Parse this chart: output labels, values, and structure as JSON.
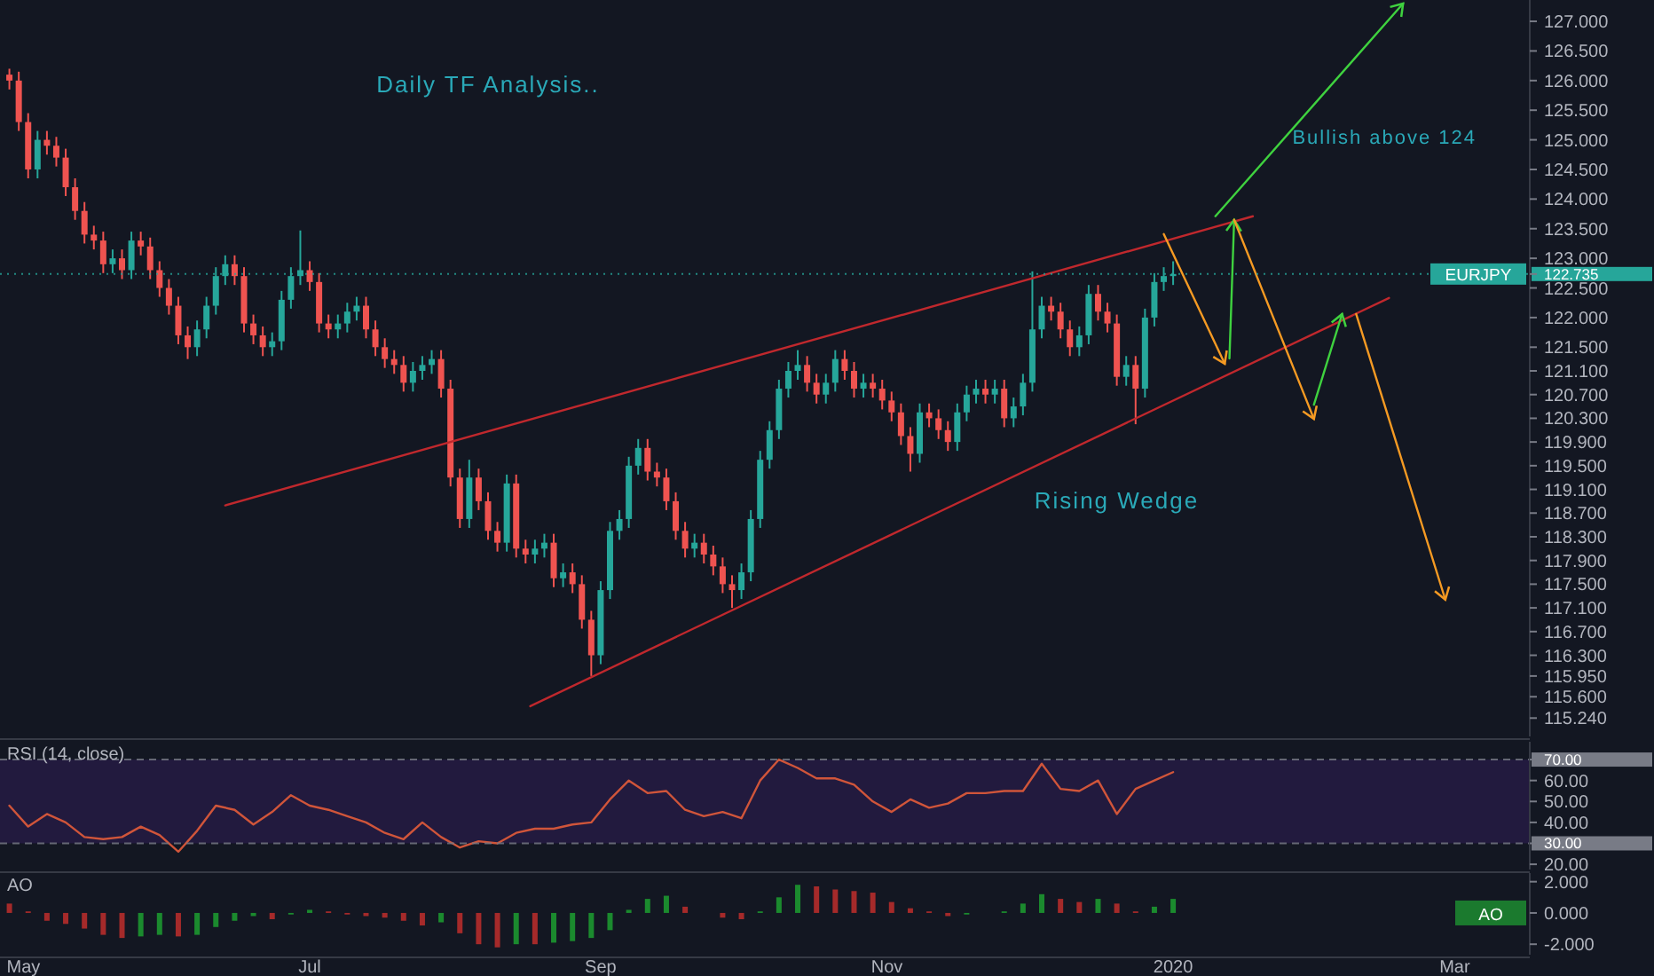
{
  "chart_data": [
    {
      "type": "candlestick",
      "annotations": [
        "Daily TF Analysis..",
        "Bullish above 124",
        "Rising Wedge"
      ],
      "x": [
        "2019-04-28",
        "2019-04-30",
        "2019-05-02",
        "2019-05-04",
        "2019-05-06",
        "2019-05-08",
        "2019-05-10",
        "2019-05-12",
        "2019-05-14",
        "2019-05-16",
        "2019-05-18",
        "2019-05-20",
        "2019-05-22",
        "2019-05-24",
        "2019-05-26",
        "2019-05-28",
        "2019-05-30",
        "2019-06-01",
        "2019-06-03",
        "2019-06-05",
        "2019-06-07",
        "2019-06-09",
        "2019-06-11",
        "2019-06-13",
        "2019-06-15",
        "2019-06-17",
        "2019-06-19",
        "2019-06-21",
        "2019-06-23",
        "2019-06-25",
        "2019-06-27",
        "2019-06-29",
        "2019-07-01",
        "2019-07-03",
        "2019-07-05",
        "2019-07-07",
        "2019-07-09",
        "2019-07-11",
        "2019-07-13",
        "2019-07-15",
        "2019-07-17",
        "2019-07-19",
        "2019-07-21",
        "2019-07-23",
        "2019-07-25",
        "2019-07-27",
        "2019-07-29",
        "2019-07-31",
        "2019-08-02",
        "2019-08-04",
        "2019-08-06",
        "2019-08-08",
        "2019-08-10",
        "2019-08-12",
        "2019-08-14",
        "2019-08-16",
        "2019-08-18",
        "2019-08-20",
        "2019-08-22",
        "2019-08-24",
        "2019-08-26",
        "2019-08-28",
        "2019-08-30",
        "2019-09-01",
        "2019-09-03",
        "2019-09-05",
        "2019-09-07",
        "2019-09-09",
        "2019-09-11",
        "2019-09-13",
        "2019-09-15",
        "2019-09-17",
        "2019-09-19",
        "2019-09-21",
        "2019-09-23",
        "2019-09-25",
        "2019-09-27",
        "2019-09-29",
        "2019-10-01",
        "2019-10-03",
        "2019-10-05",
        "2019-10-07",
        "2019-10-09",
        "2019-10-11",
        "2019-10-13",
        "2019-10-15",
        "2019-10-17",
        "2019-10-19",
        "2019-10-21",
        "2019-10-23",
        "2019-10-25",
        "2019-10-27",
        "2019-10-29",
        "2019-10-31",
        "2019-11-02",
        "2019-11-04",
        "2019-11-06",
        "2019-11-08",
        "2019-11-10",
        "2019-11-12",
        "2019-11-14",
        "2019-11-16",
        "2019-11-18",
        "2019-11-20",
        "2019-11-22",
        "2019-11-24",
        "2019-11-26",
        "2019-11-28",
        "2019-11-30",
        "2019-12-02",
        "2019-12-04",
        "2019-12-06",
        "2019-12-08",
        "2019-12-10",
        "2019-12-12",
        "2019-12-14",
        "2019-12-16",
        "2019-12-18",
        "2019-12-20",
        "2019-12-22",
        "2019-12-24",
        "2019-12-26",
        "2019-12-28",
        "2019-12-30",
        "2020-01-01"
      ],
      "ohlc": [
        [
          126.1,
          126.2,
          125.85,
          126.0
        ],
        [
          126.0,
          126.15,
          125.15,
          125.3
        ],
        [
          125.3,
          125.45,
          124.35,
          124.5
        ],
        [
          124.5,
          125.15,
          124.35,
          125.0
        ],
        [
          125.0,
          125.15,
          124.75,
          124.9
        ],
        [
          124.9,
          125.05,
          124.55,
          124.7
        ],
        [
          124.7,
          124.85,
          124.05,
          124.2
        ],
        [
          124.2,
          124.35,
          123.65,
          123.8
        ],
        [
          123.8,
          123.95,
          123.25,
          123.4
        ],
        [
          123.4,
          123.55,
          123.15,
          123.3
        ],
        [
          123.3,
          123.45,
          122.75,
          122.9
        ],
        [
          122.9,
          123.15,
          122.75,
          123.0
        ],
        [
          123.0,
          123.15,
          122.65,
          122.8
        ],
        [
          122.8,
          123.45,
          122.65,
          123.3
        ],
        [
          123.3,
          123.45,
          123.05,
          123.2
        ],
        [
          123.2,
          123.35,
          122.65,
          122.8
        ],
        [
          122.8,
          122.95,
          122.35,
          122.5
        ],
        [
          122.5,
          122.65,
          122.05,
          122.2
        ],
        [
          122.2,
          122.35,
          121.55,
          121.7
        ],
        [
          121.7,
          121.85,
          121.3,
          121.5
        ],
        [
          121.5,
          121.95,
          121.35,
          121.8
        ],
        [
          121.8,
          122.35,
          121.65,
          122.2
        ],
        [
          122.2,
          122.85,
          122.05,
          122.7
        ],
        [
          122.7,
          123.05,
          122.55,
          122.9
        ],
        [
          122.9,
          123.05,
          122.55,
          122.7
        ],
        [
          122.7,
          122.85,
          121.75,
          121.9
        ],
        [
          121.9,
          122.05,
          121.55,
          121.7
        ],
        [
          121.7,
          121.85,
          121.35,
          121.5
        ],
        [
          121.5,
          121.75,
          121.35,
          121.6
        ],
        [
          121.6,
          122.45,
          121.45,
          122.3
        ],
        [
          122.3,
          122.85,
          122.15,
          122.7
        ],
        [
          122.7,
          123.47,
          122.55,
          122.8
        ],
        [
          122.8,
          122.95,
          122.45,
          122.6
        ],
        [
          122.6,
          122.75,
          121.75,
          121.9
        ],
        [
          121.9,
          122.05,
          121.65,
          121.8
        ],
        [
          121.8,
          122.05,
          121.65,
          121.9
        ],
        [
          121.9,
          122.25,
          121.75,
          122.1
        ],
        [
          122.1,
          122.35,
          121.95,
          122.2
        ],
        [
          122.2,
          122.35,
          121.65,
          121.8
        ],
        [
          121.8,
          121.95,
          121.35,
          121.5
        ],
        [
          121.5,
          121.65,
          121.15,
          121.3
        ],
        [
          121.3,
          121.45,
          121.05,
          121.2
        ],
        [
          121.2,
          121.35,
          120.75,
          120.9
        ],
        [
          120.9,
          121.25,
          120.75,
          121.1
        ],
        [
          121.1,
          121.35,
          120.95,
          121.2
        ],
        [
          121.2,
          121.45,
          121.05,
          121.3
        ],
        [
          121.3,
          121.45,
          120.65,
          120.8
        ],
        [
          120.8,
          120.95,
          119.15,
          119.3
        ],
        [
          119.3,
          119.45,
          118.45,
          118.6
        ],
        [
          118.6,
          119.6,
          118.45,
          119.3
        ],
        [
          119.3,
          119.45,
          118.75,
          118.9
        ],
        [
          118.9,
          119.05,
          118.25,
          118.4
        ],
        [
          118.4,
          118.55,
          118.05,
          118.2
        ],
        [
          118.2,
          119.35,
          118.05,
          119.2
        ],
        [
          119.2,
          119.35,
          117.95,
          118.1
        ],
        [
          118.1,
          118.25,
          117.85,
          118.0
        ],
        [
          118.0,
          118.25,
          117.85,
          118.1
        ],
        [
          118.1,
          118.35,
          117.95,
          118.2
        ],
        [
          118.2,
          118.35,
          117.45,
          117.6
        ],
        [
          117.6,
          117.85,
          117.45,
          117.7
        ],
        [
          117.7,
          117.85,
          117.35,
          117.5
        ],
        [
          117.5,
          117.65,
          116.75,
          116.9
        ],
        [
          116.9,
          117.05,
          115.95,
          116.3
        ],
        [
          116.3,
          117.55,
          116.15,
          117.4
        ],
        [
          117.4,
          118.55,
          117.25,
          118.4
        ],
        [
          118.4,
          118.75,
          118.25,
          118.6
        ],
        [
          118.6,
          119.65,
          118.45,
          119.5
        ],
        [
          119.5,
          119.95,
          119.35,
          119.8
        ],
        [
          119.8,
          119.95,
          119.25,
          119.4
        ],
        [
          119.4,
          119.55,
          119.15,
          119.3
        ],
        [
          119.3,
          119.45,
          118.75,
          118.9
        ],
        [
          118.9,
          119.05,
          118.25,
          118.4
        ],
        [
          118.4,
          118.55,
          117.95,
          118.1
        ],
        [
          118.1,
          118.35,
          117.95,
          118.2
        ],
        [
          118.2,
          118.35,
          117.85,
          118.0
        ],
        [
          118.0,
          118.15,
          117.65,
          117.8
        ],
        [
          117.8,
          117.95,
          117.35,
          117.5
        ],
        [
          117.5,
          117.65,
          117.1,
          117.4
        ],
        [
          117.4,
          117.85,
          117.25,
          117.7
        ],
        [
          117.7,
          118.75,
          117.55,
          118.6
        ],
        [
          118.6,
          119.75,
          118.45,
          119.6
        ],
        [
          119.6,
          120.25,
          119.45,
          120.1
        ],
        [
          120.1,
          120.95,
          119.95,
          120.8
        ],
        [
          120.8,
          121.25,
          120.65,
          121.1
        ],
        [
          121.1,
          121.45,
          120.95,
          121.2
        ],
        [
          121.2,
          121.35,
          120.75,
          120.9
        ],
        [
          120.9,
          121.05,
          120.55,
          120.7
        ],
        [
          120.7,
          121.05,
          120.55,
          120.9
        ],
        [
          120.9,
          121.45,
          120.75,
          121.3
        ],
        [
          121.3,
          121.45,
          120.95,
          121.1
        ],
        [
          121.1,
          121.25,
          120.65,
          120.8
        ],
        [
          120.8,
          121.05,
          120.65,
          120.9
        ],
        [
          120.9,
          121.05,
          120.65,
          120.8
        ],
        [
          120.8,
          120.95,
          120.45,
          120.6
        ],
        [
          120.6,
          120.75,
          120.25,
          120.4
        ],
        [
          120.4,
          120.55,
          119.85,
          120.0
        ],
        [
          120.0,
          120.15,
          119.4,
          119.7
        ],
        [
          119.7,
          120.55,
          119.55,
          120.4
        ],
        [
          120.4,
          120.55,
          120.15,
          120.3
        ],
        [
          120.3,
          120.45,
          119.95,
          120.1
        ],
        [
          120.1,
          120.25,
          119.75,
          119.9
        ],
        [
          119.9,
          120.55,
          119.75,
          120.4
        ],
        [
          120.4,
          120.85,
          120.25,
          120.7
        ],
        [
          120.7,
          120.95,
          120.55,
          120.8
        ],
        [
          120.8,
          120.95,
          120.55,
          120.7
        ],
        [
          120.7,
          120.95,
          120.55,
          120.8
        ],
        [
          120.8,
          120.95,
          120.15,
          120.3
        ],
        [
          120.3,
          120.65,
          120.15,
          120.5
        ],
        [
          120.5,
          121.05,
          120.35,
          120.9
        ],
        [
          120.9,
          122.78,
          120.75,
          121.8
        ],
        [
          121.8,
          122.35,
          121.65,
          122.2
        ],
        [
          122.2,
          122.35,
          121.95,
          122.1
        ],
        [
          122.1,
          122.25,
          121.65,
          121.8
        ],
        [
          121.8,
          121.95,
          121.35,
          121.5
        ],
        [
          121.5,
          121.85,
          121.35,
          121.7
        ],
        [
          121.7,
          122.55,
          121.55,
          122.4
        ],
        [
          122.4,
          122.55,
          121.95,
          122.1
        ],
        [
          122.1,
          122.25,
          121.75,
          121.9
        ],
        [
          121.9,
          122.05,
          120.85,
          121.0
        ],
        [
          121.0,
          121.35,
          120.85,
          121.2
        ],
        [
          121.2,
          121.35,
          120.2,
          120.8
        ],
        [
          120.8,
          122.15,
          120.65,
          122.0
        ],
        [
          122.0,
          122.75,
          121.85,
          122.6
        ],
        [
          122.6,
          122.85,
          122.45,
          122.7
        ],
        [
          122.7,
          122.95,
          122.55,
          122.735
        ]
      ],
      "colors": [
        "#ef5350",
        "#ef5350",
        "#ef5350",
        "#26a69a",
        "#ef5350",
        "#ef5350",
        "#ef5350",
        "#ef5350",
        "#ef5350",
        "#ef5350",
        "#ef5350",
        "#26a69a",
        "#ef5350",
        "#26a69a",
        "#ef5350",
        "#ef5350",
        "#ef5350",
        "#ef5350",
        "#ef5350",
        "#ef5350",
        "#26a69a",
        "#26a69a",
        "#26a69a",
        "#26a69a",
        "#ef5350",
        "#ef5350",
        "#ef5350",
        "#ef5350",
        "#26a69a",
        "#26a69a",
        "#26a69a",
        "#26a69a",
        "#ef5350",
        "#ef5350",
        "#ef5350",
        "#26a69a",
        "#26a69a",
        "#26a69a",
        "#ef5350",
        "#ef5350",
        "#ef5350",
        "#ef5350",
        "#ef5350",
        "#26a69a",
        "#26a69a",
        "#26a69a",
        "#ef5350",
        "#ef5350",
        "#ef5350",
        "#26a69a",
        "#ef5350",
        "#ef5350",
        "#ef5350",
        "#26a69a",
        "#ef5350",
        "#ef5350",
        "#26a69a",
        "#26a69a",
        "#ef5350",
        "#26a69a",
        "#ef5350",
        "#ef5350",
        "#ef5350",
        "#26a69a",
        "#26a69a",
        "#26a69a",
        "#26a69a",
        "#26a69a",
        "#ef5350",
        "#ef5350",
        "#ef5350",
        "#ef5350",
        "#ef5350",
        "#26a69a",
        "#ef5350",
        "#ef5350",
        "#ef5350",
        "#ef5350",
        "#26a69a",
        "#26a69a",
        "#26a69a",
        "#26a69a",
        "#26a69a",
        "#26a69a",
        "#26a69a",
        "#ef5350",
        "#ef5350",
        "#26a69a",
        "#26a69a",
        "#ef5350",
        "#ef5350",
        "#26a69a",
        "#ef5350",
        "#ef5350",
        "#ef5350",
        "#ef5350",
        "#ef5350",
        "#26a69a",
        "#ef5350",
        "#ef5350",
        "#ef5350",
        "#26a69a",
        "#26a69a",
        "#26a69a",
        "#ef5350",
        "#26a69a",
        "#ef5350",
        "#26a69a",
        "#26a69a",
        "#26a69a",
        "#26a69a",
        "#ef5350",
        "#ef5350",
        "#ef5350",
        "#26a69a",
        "#26a69a",
        "#ef5350",
        "#ef5350",
        "#ef5350",
        "#26a69a",
        "#ef5350",
        "#26a69a",
        "#26a69a",
        "#26a69a",
        "#26a69a"
      ],
      "series": [
        {
          "type": "line",
          "x": [
            "2019-06-13",
            "2020-01-18"
          ],
          "values": [
            118.83,
            123.71
          ],
          "color": "#c0282d"
        },
        {
          "type": "line",
          "x": [
            "2019-08-17",
            "2020-02-16"
          ],
          "values": [
            115.44,
            122.33
          ],
          "color": "#c0282d"
        },
        {
          "type": "line",
          "x": [
            "2019-12-30",
            "2020-01-12"
          ],
          "values": [
            123.41,
            121.22
          ],
          "color": "#f59a23"
        },
        {
          "type": "line",
          "x": [
            "2020-01-13",
            "2020-01-14"
          ],
          "values": [
            121.31,
            123.65
          ],
          "color": "#3fd23f"
        },
        {
          "type": "line",
          "x": [
            "2020-01-14",
            "2020-01-31"
          ],
          "values": [
            123.65,
            120.29
          ],
          "color": "#f59a23"
        },
        {
          "type": "line",
          "x": [
            "2020-01-31",
            "2020-02-06"
          ],
          "values": [
            120.53,
            122.06
          ],
          "color": "#3fd23f"
        },
        {
          "type": "line",
          "x": [
            "2020-02-09",
            "2020-02-28"
          ],
          "values": [
            122.06,
            117.24
          ],
          "color": "#f59a23"
        },
        {
          "type": "line",
          "x": [
            "2020-01-10",
            "2020-02-19"
          ],
          "values": [
            123.71,
            127.3
          ],
          "color": "#3fd23f"
        }
      ],
      "xlim": [
        "2019-04-26",
        "2020-03-17"
      ],
      "ylim": [
        114.93,
        127.36
      ],
      "yticks": [
        {
          "value": 127,
          "label": "127.000"
        },
        {
          "value": 126.5,
          "label": "126.500"
        },
        {
          "value": 126,
          "label": "126.000"
        },
        {
          "value": 125.5,
          "label": "125.500"
        },
        {
          "value": 125,
          "label": "125.000"
        },
        {
          "value": 124.5,
          "label": "124.500"
        },
        {
          "value": 124,
          "label": "124.000"
        },
        {
          "value": 123.5,
          "label": "123.500"
        },
        {
          "value": 123,
          "label": "123.000"
        },
        {
          "value": 122.735,
          "label": "122.735"
        },
        {
          "value": 122.5,
          "label": "122.500"
        },
        {
          "value": 122,
          "label": "122.000"
        },
        {
          "value": 121.5,
          "label": "121.500"
        },
        {
          "value": 121.1,
          "label": "121.100"
        },
        {
          "value": 120.7,
          "label": "120.700"
        },
        {
          "value": 120.3,
          "label": "120.300"
        },
        {
          "value": 119.9,
          "label": "119.900"
        },
        {
          "value": 119.5,
          "label": "119.500"
        },
        {
          "value": 119.1,
          "label": "119.100"
        },
        {
          "value": 118.7,
          "label": "118.700"
        },
        {
          "value": 118.3,
          "label": "118.300"
        },
        {
          "value": 117.9,
          "label": "117.900"
        },
        {
          "value": 117.5,
          "label": "117.500"
        },
        {
          "value": 117.1,
          "label": "117.100"
        },
        {
          "value": 116.7,
          "label": "116.700"
        },
        {
          "value": 116.3,
          "label": "116.300"
        },
        {
          "value": 115.95,
          "label": "115.950"
        },
        {
          "value": 115.6,
          "label": "115.600"
        },
        {
          "value": 115.24,
          "label": "115.240"
        }
      ],
      "ref_lines": [
        {
          "axis": "y",
          "value": 122.735,
          "label": "EURJPY",
          "color": "#26a69a",
          "line_style": "dotted"
        }
      ],
      "tick_labels": "y"
    },
    {
      "type": "line",
      "title": "RSI (14, close)",
      "series": [
        {
          "color": "#d0553a",
          "x": [
            "2019-04-28",
            "2019-05-02",
            "2019-05-06",
            "2019-05-10",
            "2019-05-14",
            "2019-05-18",
            "2019-05-22",
            "2019-05-26",
            "2019-05-30",
            "2019-06-03",
            "2019-06-07",
            "2019-06-11",
            "2019-06-15",
            "2019-06-19",
            "2019-06-23",
            "2019-06-27",
            "2019-07-01",
            "2019-07-05",
            "2019-07-09",
            "2019-07-13",
            "2019-07-17",
            "2019-07-21",
            "2019-07-25",
            "2019-07-29",
            "2019-08-02",
            "2019-08-06",
            "2019-08-10",
            "2019-08-14",
            "2019-08-18",
            "2019-08-22",
            "2019-08-26",
            "2019-08-30",
            "2019-09-03",
            "2019-09-07",
            "2019-09-11",
            "2019-09-15",
            "2019-09-19",
            "2019-09-23",
            "2019-09-27",
            "2019-10-01",
            "2019-10-05",
            "2019-10-09",
            "2019-10-13",
            "2019-10-17",
            "2019-10-21",
            "2019-10-25",
            "2019-10-29",
            "2019-11-02",
            "2019-11-06",
            "2019-11-10",
            "2019-11-14",
            "2019-11-18",
            "2019-11-22",
            "2019-11-26",
            "2019-11-30",
            "2019-12-04",
            "2019-12-08",
            "2019-12-12",
            "2019-12-16",
            "2019-12-20",
            "2019-12-24",
            "2019-12-28",
            "2020-01-01"
          ],
          "values": [
            48,
            38,
            44,
            40,
            33,
            32,
            33,
            38,
            34,
            26,
            36,
            48,
            46,
            39,
            45,
            53,
            48,
            46,
            43,
            40,
            35,
            32,
            40,
            33,
            28,
            31,
            30,
            35,
            37,
            37,
            39,
            40,
            51,
            60,
            54,
            55,
            46,
            43,
            45,
            42,
            60,
            70,
            66,
            61,
            61,
            58,
            50,
            45,
            51,
            47,
            49,
            54,
            54,
            55,
            55,
            68,
            56,
            55,
            60,
            44,
            56,
            60,
            64
          ]
        }
      ],
      "xlim": [
        "2019-04-26",
        "2020-03-17"
      ],
      "ylim": [
        17.5,
        78.5
      ],
      "yticks": [
        {
          "value": 70,
          "label": "70.00"
        },
        {
          "value": 60,
          "label": "60.00"
        },
        {
          "value": 50,
          "label": "50.00"
        },
        {
          "value": 40,
          "label": "40.00"
        },
        {
          "value": 30,
          "label": "30.00"
        },
        {
          "value": 20,
          "label": "20.00"
        }
      ],
      "bands": [
        {
          "axis": "y",
          "from": 30,
          "to": 70,
          "color": "#221a3e"
        }
      ],
      "ref_lines": [
        {
          "axis": "y",
          "value": 70,
          "color": "#787b86",
          "line_style": "dashed"
        },
        {
          "axis": "y",
          "value": 30,
          "color": "#787b86",
          "line_style": "dashed"
        }
      ],
      "tick_labels": "y"
    },
    {
      "type": "bar",
      "title": "AO",
      "x": [
        "2019-04-28",
        "2019-05-02",
        "2019-05-06",
        "2019-05-10",
        "2019-05-14",
        "2019-05-18",
        "2019-05-22",
        "2019-05-26",
        "2019-05-30",
        "2019-06-03",
        "2019-06-07",
        "2019-06-11",
        "2019-06-15",
        "2019-06-19",
        "2019-06-23",
        "2019-06-27",
        "2019-07-01",
        "2019-07-05",
        "2019-07-09",
        "2019-07-13",
        "2019-07-17",
        "2019-07-21",
        "2019-07-25",
        "2019-07-29",
        "2019-08-02",
        "2019-08-06",
        "2019-08-10",
        "2019-08-14",
        "2019-08-18",
        "2019-08-22",
        "2019-08-26",
        "2019-08-30",
        "2019-09-03",
        "2019-09-07",
        "2019-09-11",
        "2019-09-15",
        "2019-09-19",
        "2019-09-23",
        "2019-09-27",
        "2019-10-01",
        "2019-10-05",
        "2019-10-09",
        "2019-10-13",
        "2019-10-17",
        "2019-10-21",
        "2019-10-25",
        "2019-10-29",
        "2019-11-02",
        "2019-11-06",
        "2019-11-10",
        "2019-11-14",
        "2019-11-18",
        "2019-11-22",
        "2019-11-26",
        "2019-11-30",
        "2019-12-04",
        "2019-12-08",
        "2019-12-12",
        "2019-12-16",
        "2019-12-20",
        "2019-12-24",
        "2019-12-28",
        "2020-01-01"
      ],
      "values": [
        0.6,
        0.1,
        -0.5,
        -0.7,
        -1.0,
        -1.4,
        -1.6,
        -1.5,
        -1.4,
        -1.5,
        -1.4,
        -0.9,
        -0.5,
        -0.2,
        -0.4,
        -0.1,
        0.2,
        0.1,
        -0.1,
        -0.2,
        -0.3,
        -0.5,
        -0.8,
        -0.6,
        -1.3,
        -2.0,
        -2.2,
        -2.0,
        -2.0,
        -1.9,
        -1.8,
        -1.6,
        -1.1,
        0.2,
        0.9,
        1.1,
        0.4,
        0.0,
        -0.3,
        -0.4,
        0.1,
        1.0,
        1.8,
        1.7,
        1.5,
        1.4,
        1.3,
        0.7,
        0.3,
        0.1,
        -0.2,
        -0.1,
        0.0,
        0.1,
        0.6,
        1.2,
        0.9,
        0.7,
        0.9,
        0.6,
        0.1,
        0.4,
        0.9
      ],
      "colors": [
        "#a52a2a",
        "#a52a2a",
        "#a52a2a",
        "#a52a2a",
        "#a52a2a",
        "#a52a2a",
        "#a52a2a",
        "#1b8a2e",
        "#1b8a2e",
        "#a52a2a",
        "#1b8a2e",
        "#1b8a2e",
        "#1b8a2e",
        "#1b8a2e",
        "#a52a2a",
        "#1b8a2e",
        "#1b8a2e",
        "#a52a2a",
        "#a52a2a",
        "#a52a2a",
        "#a52a2a",
        "#a52a2a",
        "#a52a2a",
        "#1b8a2e",
        "#a52a2a",
        "#a52a2a",
        "#a52a2a",
        "#1b8a2e",
        "#a52a2a",
        "#1b8a2e",
        "#1b8a2e",
        "#1b8a2e",
        "#1b8a2e",
        "#1b8a2e",
        "#1b8a2e",
        "#1b8a2e",
        "#a52a2a",
        "#a52a2a",
        "#a52a2a",
        "#a52a2a",
        "#1b8a2e",
        "#1b8a2e",
        "#1b8a2e",
        "#a52a2a",
        "#a52a2a",
        "#a52a2a",
        "#a52a2a",
        "#a52a2a",
        "#a52a2a",
        "#a52a2a",
        "#a52a2a",
        "#1b8a2e",
        "#1b8a2e",
        "#1b8a2e",
        "#1b8a2e",
        "#1b8a2e",
        "#a52a2a",
        "#a52a2a",
        "#1b8a2e",
        "#a52a2a",
        "#a52a2a",
        "#1b8a2e",
        "#1b8a2e"
      ],
      "xlim": [
        "2019-04-26",
        "2020-03-17"
      ],
      "ylim": [
        -2.67,
        2.55
      ],
      "xticks": [
        {
          "value": "2019-05-01",
          "label": "May"
        },
        {
          "value": "2019-07-01",
          "label": "Jul"
        },
        {
          "value": "2019-09-01",
          "label": "Sep"
        },
        {
          "value": "2019-11-01",
          "label": "Nov"
        },
        {
          "value": "2020-01-01",
          "label": "2020"
        },
        {
          "value": "2020-03-01",
          "label": "Mar"
        }
      ],
      "yticks": [
        {
          "value": 2,
          "label": "2.000"
        },
        {
          "value": 0,
          "label": "0.000"
        },
        {
          "value": -2,
          "label": "-2.000"
        }
      ]
    }
  ]
}
